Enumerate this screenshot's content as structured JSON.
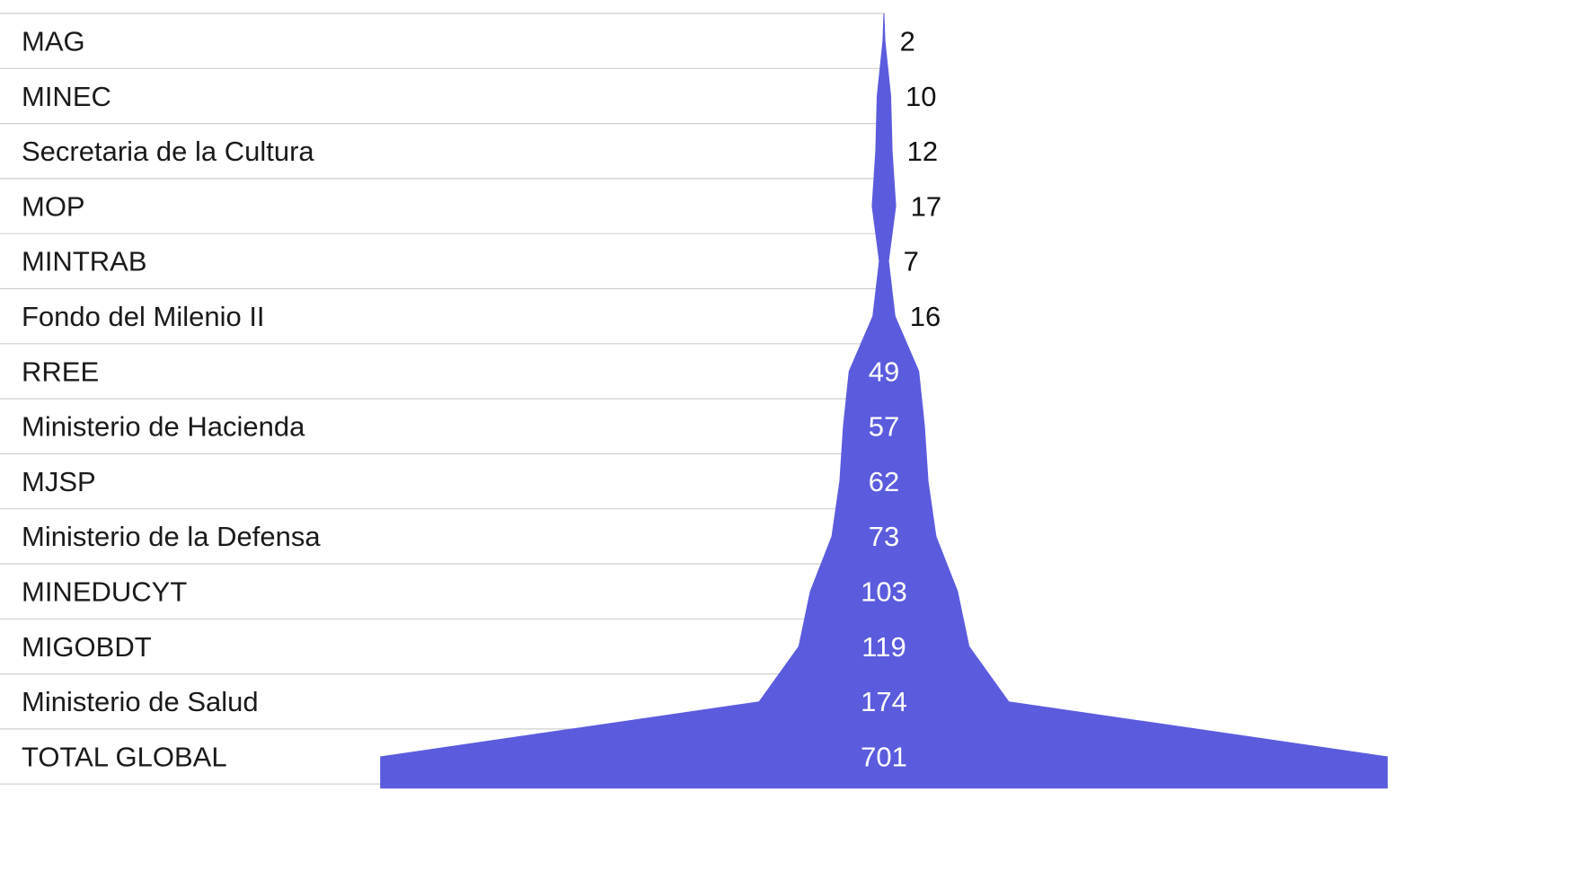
{
  "chart_data": {
    "type": "funnel",
    "categories": [
      "MAG",
      "MINEC",
      "Secretaria de la Cultura",
      "MOP",
      "MINTRAB",
      "Fondo del Milenio II",
      "RREE",
      "Ministerio de Hacienda",
      "MJSP",
      "Ministerio de la Defensa",
      "MINEDUCYT",
      "MIGOBDT",
      "Ministerio de Salud",
      "TOTAL GLOBAL"
    ],
    "values": [
      2,
      10,
      12,
      17,
      7,
      16,
      49,
      57,
      62,
      73,
      103,
      119,
      174,
      701
    ],
    "grid": true,
    "colors": {
      "fill": "#5B5BDE",
      "grid": "#cfcfcf",
      "label_text": "#1a1a1a",
      "value_outside": "#111111",
      "value_inside": "#ffffff"
    }
  }
}
